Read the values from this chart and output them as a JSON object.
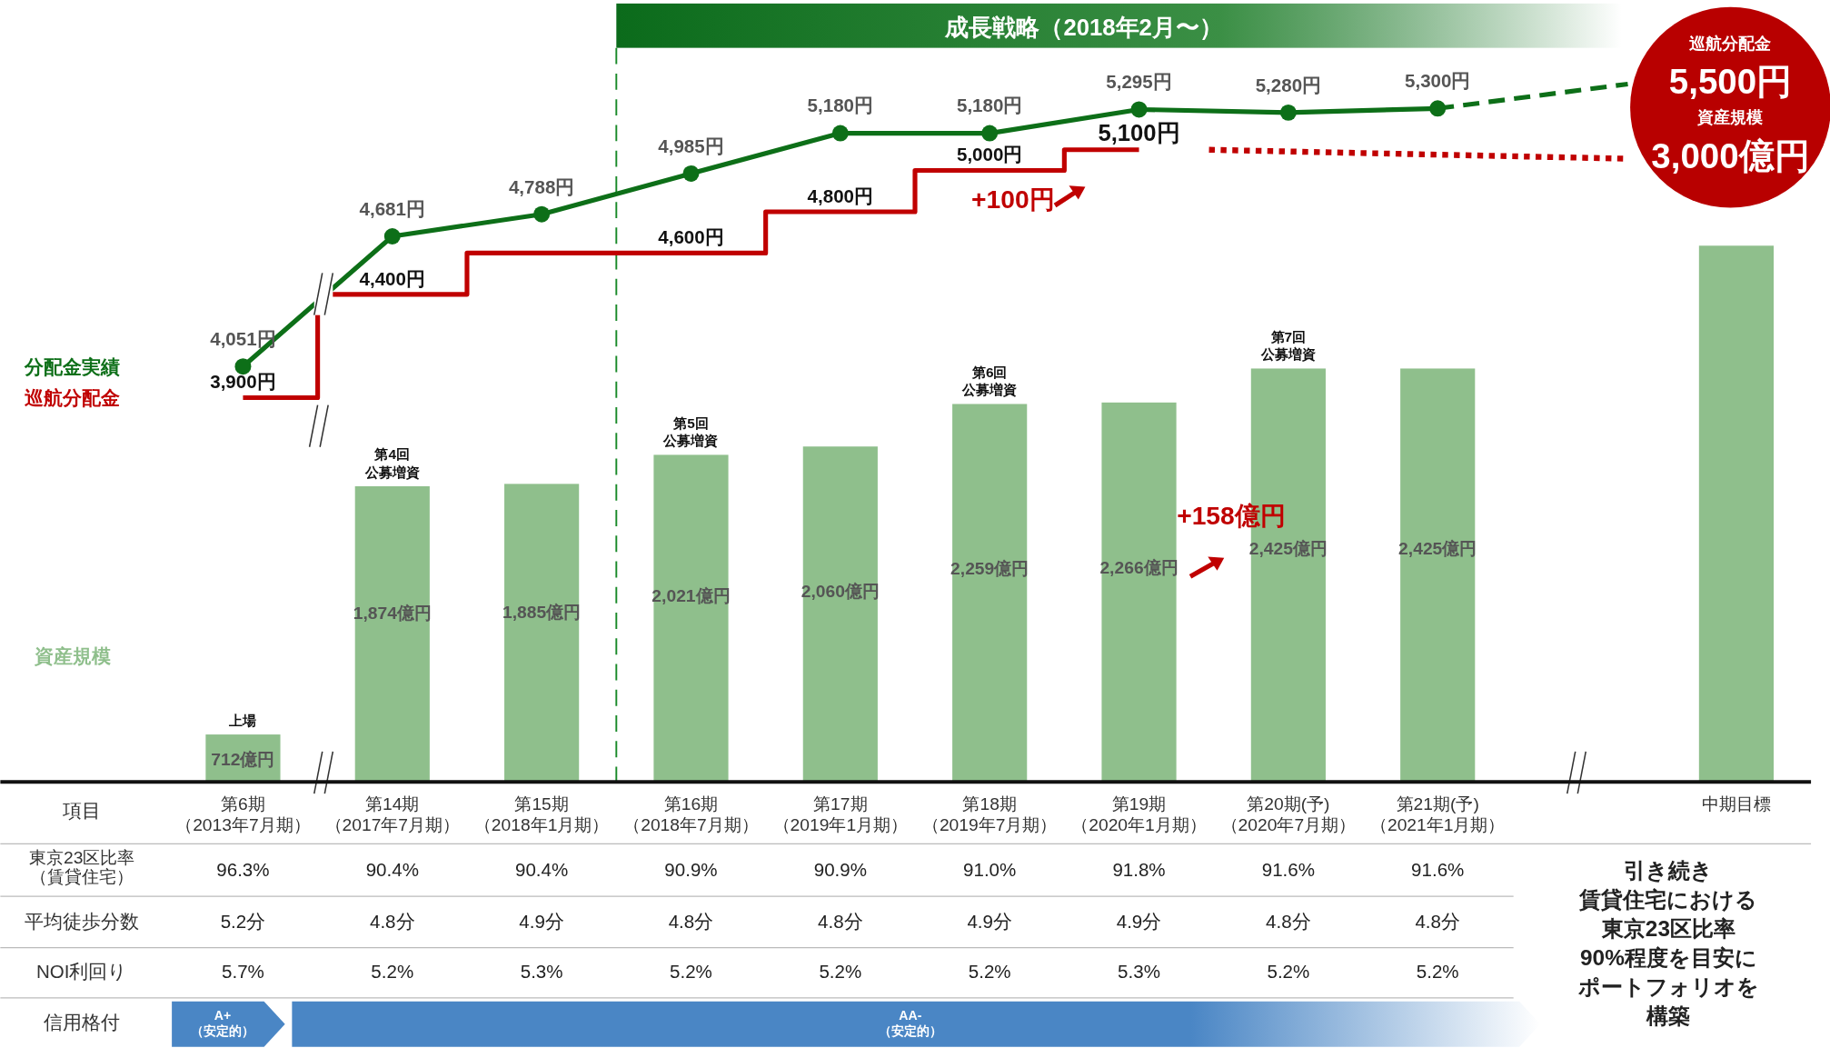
{
  "chart_data": [
    {
      "type": "bar",
      "categories": [
        "第6期（2013年7月期）",
        "第14期（2017年7月期）",
        "第15期（2018年1月期）",
        "第16期（2018年7月期）",
        "第17期（2019年1月期）",
        "第18期（2019年7月期）",
        "第19期（2020年1月期）",
        "第20期(予)（2020年7月期）",
        "第21期(予)（2021年1月期）",
        null,
        "中期目標"
      ],
      "series": [
        {
          "name": "資産規模",
          "type": "bar",
          "color": "#8fbf8c",
          "values": [
            712,
            1874,
            1885,
            2021,
            2060,
            2259,
            2266,
            2425,
            2425,
            null,
            3000
          ],
          "value_labels": [
            "712億円",
            "1,874億円",
            "1,885億円",
            "2,021億円",
            "2,060億円",
            "2,259億円",
            "2,266億円",
            "2,425億円",
            "2,425億円",
            null,
            null
          ]
        },
        {
          "name": "分配金実績",
          "type": "line",
          "axis": "y2",
          "color": "#0d6f18",
          "marker": "circle",
          "values": [
            4051,
            4681,
            4788,
            4985,
            5180,
            5180,
            5295,
            5280,
            5300,
            null,
            null
          ],
          "value_labels": [
            "4,051円",
            "4,681円",
            "4,788円",
            "4,985円",
            "5,180円",
            "5,180円",
            "5,295円",
            "5,280円",
            "5,300円",
            null,
            null
          ]
        },
        {
          "name": "巡航分配金",
          "type": "step",
          "axis": "y2",
          "color": "#c00000",
          "values": [
            3900,
            4400,
            4600,
            4600,
            4800,
            5000,
            5100,
            null,
            null,
            null,
            null
          ],
          "value_labels": [
            "3,900円",
            "4,400円",
            null,
            "4,600円",
            "4,800円",
            "5,000円",
            "5,100円",
            null,
            null,
            null,
            null
          ]
        }
      ],
      "ref_lines": [
        {
          "axis": "x",
          "value": "第16期（2018年7月期）",
          "color": "#1a8a2a",
          "line_style": "dashed"
        }
      ],
      "ylim": [
        490,
        4150
      ],
      "y2lim": [
        2040,
        5825
      ],
      "tick_labels": "x",
      "legend": "left",
      "annotations": [
        {
          "text": "上場",
          "x": "第6期（2013年7月期）",
          "y": 712
        },
        {
          "text": "第4回公募増資",
          "x": "第14期（2017年7月期）",
          "y": 1874
        },
        {
          "text": "第5回公募増資",
          "x": "第16期（2018年7月期）",
          "y": 2021
        },
        {
          "text": "第6回公募増資",
          "x": "第18期（2019年7月期）",
          "y": 2259
        },
        {
          "text": "第7回公募増資",
          "x": "第20期(予)（2020年7月期）",
          "y": 2425
        },
        "+100円",
        "+158億円",
        "巡航分配金",
        "5,500円",
        "資産規模",
        "3,000億円",
        "成長戦略（2018年2月〜）"
      ]
    },
    {
      "type": "other",
      "title": "項目",
      "y_categories": [
        "東京23区比率（賃貸住宅）",
        "平均徒歩分数",
        "NOI利回り",
        "信用格付"
      ],
      "cell_labels": [
        [
          "96.3%",
          "90.4%",
          "90.4%",
          "90.9%",
          "90.9%",
          "91.0%",
          "91.8%",
          "91.6%",
          "91.6%"
        ],
        [
          "5.2分",
          "4.8分",
          "4.9分",
          "4.8分",
          "4.8分",
          "4.9分",
          "4.9分",
          "4.8分",
          "4.8分"
        ],
        [
          "5.7%",
          "5.2%",
          "5.3%",
          "5.2%",
          "5.2%",
          "5.2%",
          "5.3%",
          "5.2%",
          "5.2%"
        ],
        [
          "A+（安定的）",
          "AA-（安定的）",
          null,
          null,
          null,
          null,
          null,
          null,
          null
        ]
      ],
      "annotations": [
        "引き続き",
        "賃貸住宅における",
        "東京23区比率",
        "90%程度を目安に",
        "ポートフォリオを",
        "構築"
      ]
    }
  ]
}
